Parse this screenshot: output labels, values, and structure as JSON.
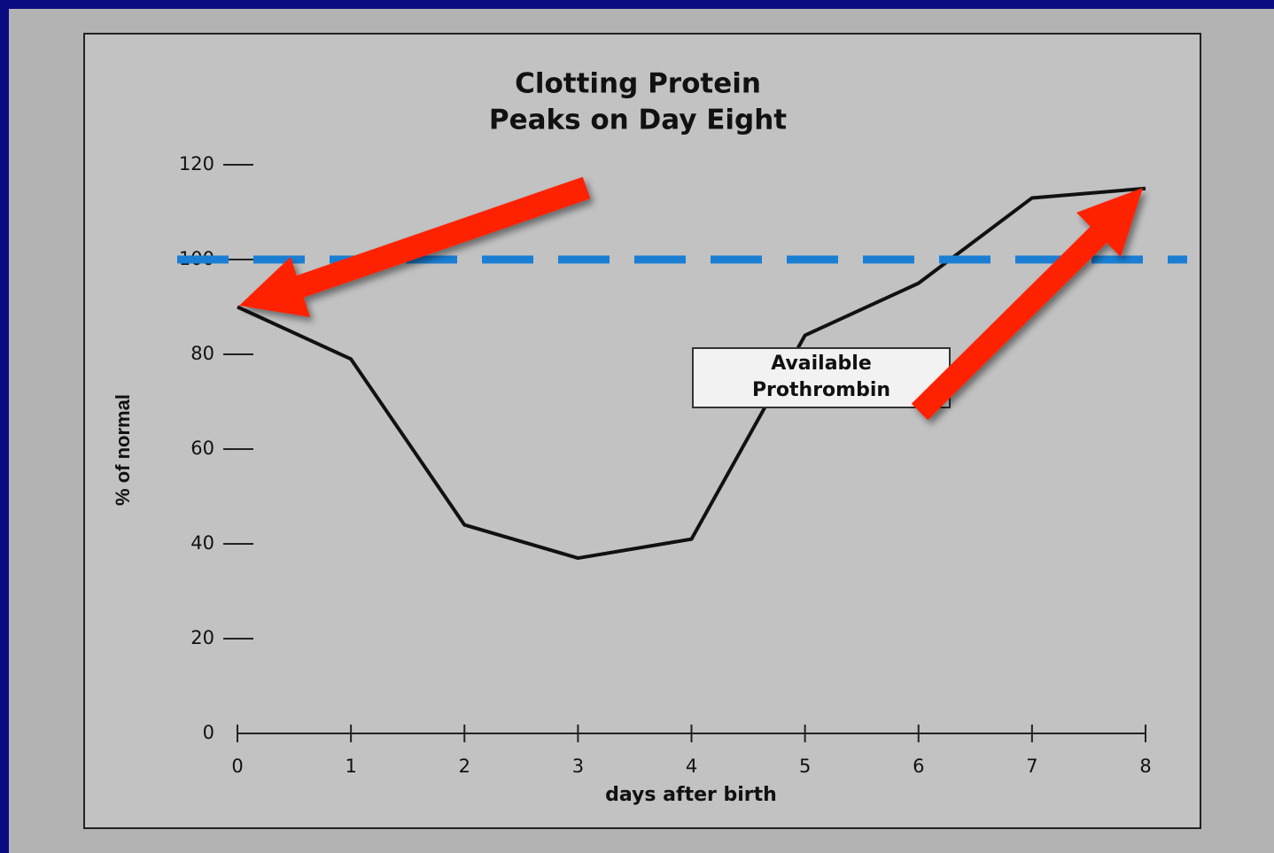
{
  "chart_data": {
    "type": "line",
    "title": [
      "Clotting Protein",
      "Peaks on Day Eight"
    ],
    "x_label": "days after birth",
    "y_label": "% of normal",
    "x": [
      0,
      1,
      2,
      3,
      4,
      5,
      6,
      7,
      8
    ],
    "series": [
      {
        "name": "Available Prothrombin",
        "color": "#111111",
        "values": [
          90,
          79,
          44,
          37,
          41,
          84,
          95,
          113,
          115
        ]
      }
    ],
    "xlim": [
      0,
      8
    ],
    "xticks": [
      0,
      1,
      2,
      3,
      4,
      5,
      6,
      7,
      8
    ],
    "ylim": [
      0,
      120
    ],
    "yticks": [
      0,
      20,
      40,
      60,
      80,
      100,
      120
    ],
    "reference_line": {
      "value": 100,
      "color": "#1a7fd4"
    }
  }
}
